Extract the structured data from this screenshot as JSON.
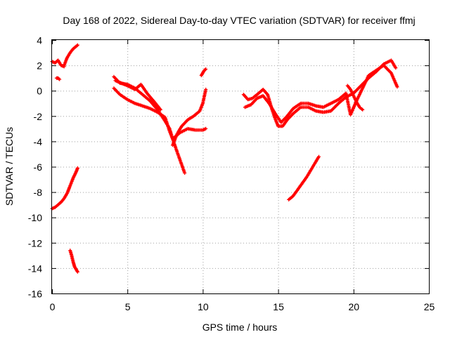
{
  "chart_data": {
    "type": "scatter",
    "title": "Day 168 of 2022, Sidereal Day-to-day VTEC variation (SDTVAR) for receiver ffmj",
    "xlabel": "GPS time / hours",
    "ylabel": "SDTVAR / TECUs",
    "xlim": [
      0,
      25
    ],
    "ylim": [
      -16,
      4
    ],
    "xticks": [
      0,
      5,
      10,
      15,
      20,
      25
    ],
    "yticks": [
      -16,
      -14,
      -12,
      -10,
      -8,
      -6,
      -4,
      -2,
      0,
      2,
      4
    ],
    "grid": true,
    "marker": "plus",
    "color": "#ff0000",
    "series": [
      {
        "segments": [
          {
            "x": [
              0.0,
              0.2,
              0.4,
              0.6,
              0.8
            ],
            "y": [
              2.3,
              2.2,
              2.4,
              2.0,
              1.9
            ]
          },
          {
            "x": [
              0.3,
              0.4,
              0.5
            ],
            "y": [
              1.0,
              1.0,
              0.9
            ]
          },
          {
            "x": [
              0.8,
              1.0,
              1.2,
              1.4,
              1.6,
              1.7
            ],
            "y": [
              2.0,
              2.6,
              3.0,
              3.3,
              3.5,
              3.6
            ]
          },
          {
            "x": [
              0.0,
              0.2,
              0.4,
              0.6,
              0.8,
              1.0,
              1.2,
              1.4,
              1.6,
              1.7
            ],
            "y": [
              -9.3,
              -9.2,
              -9.0,
              -8.8,
              -8.5,
              -8.1,
              -7.5,
              -6.9,
              -6.4,
              -6.1
            ]
          },
          {
            "x": [
              1.2,
              1.3,
              1.4,
              1.5,
              1.6,
              1.7
            ],
            "y": [
              -12.6,
              -13.0,
              -13.5,
              -13.9,
              -14.1,
              -14.3
            ]
          },
          {
            "x": [
              4.1,
              4.5,
              5.0,
              5.5,
              6.0,
              6.5,
              7.0,
              7.5,
              7.8,
              8.0,
              8.2,
              8.5,
              8.8
            ],
            "y": [
              1.1,
              0.6,
              0.5,
              0.2,
              -0.3,
              -0.8,
              -1.5,
              -2.4,
              -3.0,
              -3.8,
              -4.5,
              -5.5,
              -6.5
            ]
          },
          {
            "x": [
              4.1,
              4.5,
              5.0,
              5.5,
              6.0,
              6.5,
              7.0,
              7.5,
              7.8,
              8.0,
              8.5,
              9.0,
              9.5,
              10.0,
              10.2
            ],
            "y": [
              0.2,
              -0.3,
              -0.7,
              -1.0,
              -1.2,
              -1.4,
              -1.7,
              -2.1,
              -3.2,
              -3.8,
              -3.3,
              -3.0,
              -3.1,
              -3.1,
              -3.0
            ]
          },
          {
            "x": [
              4.2,
              4.6,
              5.0,
              5.5,
              5.9,
              6.3,
              6.8,
              7.2
            ],
            "y": [
              0.8,
              0.6,
              0.4,
              0.1,
              0.5,
              -0.2,
              -0.9,
              -1.5
            ]
          },
          {
            "x": [
              8.0,
              8.3,
              8.6,
              9.0,
              9.4,
              9.8,
              10.0,
              10.2
            ],
            "y": [
              -4.3,
              -3.4,
              -2.8,
              -2.3,
              -2.0,
              -1.6,
              -1.0,
              0.1
            ]
          },
          {
            "x": [
              9.9,
              10.0,
              10.1,
              10.2
            ],
            "y": [
              1.2,
              1.4,
              1.6,
              1.7
            ]
          },
          {
            "x": [
              12.7,
              13.0,
              13.3,
              13.6,
              14.0,
              14.3,
              14.6,
              14.8,
              15.0,
              15.3,
              15.6,
              16.0,
              16.5,
              17.0,
              17.5,
              18.0,
              18.5,
              19.0,
              19.5,
              20.0,
              20.5,
              21.0,
              21.5,
              22.0,
              22.5,
              22.8
            ],
            "y": [
              -0.3,
              -0.7,
              -0.6,
              -0.3,
              0.1,
              -0.3,
              -1.5,
              -2.2,
              -2.8,
              -2.8,
              -2.3,
              -1.8,
              -1.3,
              -1.3,
              -1.6,
              -1.7,
              -1.6,
              -1.0,
              -0.5,
              -0.2,
              0.4,
              1.0,
              1.5,
              2.1,
              2.4,
              1.8
            ]
          },
          {
            "x": [
              12.8,
              13.2,
              13.6,
              14.0,
              14.4,
              14.8,
              15.2,
              15.6,
              16.0,
              16.5,
              17.0,
              17.5,
              18.0,
              18.5,
              19.0,
              19.5,
              19.8,
              20.2,
              20.6,
              21.0,
              21.5,
              22.0,
              22.5,
              22.9
            ],
            "y": [
              -1.3,
              -1.1,
              -0.6,
              -0.4,
              -1.0,
              -1.8,
              -2.5,
              -2.0,
              -1.4,
              -1.0,
              -1.0,
              -1.2,
              -1.3,
              -1.0,
              -0.7,
              -0.2,
              -1.9,
              -0.8,
              0.2,
              1.2,
              1.6,
              2.0,
              1.4,
              0.3
            ]
          },
          {
            "x": [
              19.6,
              19.8,
              20.0,
              20.2,
              20.4,
              20.6
            ],
            "y": [
              0.4,
              0.1,
              -0.4,
              -0.9,
              -1.3,
              -1.5
            ]
          },
          {
            "x": [
              15.7,
              16.0,
              16.3,
              16.6,
              16.9,
              17.2,
              17.5,
              17.7
            ],
            "y": [
              -8.6,
              -8.3,
              -7.8,
              -7.3,
              -6.8,
              -6.2,
              -5.6,
              -5.2
            ]
          }
        ]
      }
    ]
  }
}
